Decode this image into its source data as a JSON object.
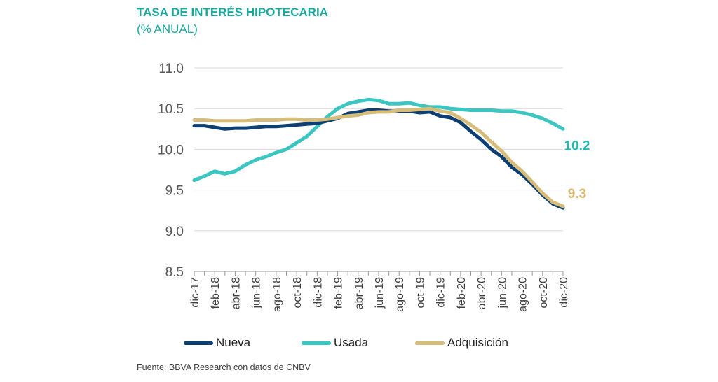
{
  "header": {
    "title": "TASA DE INTERÉS HIPOTECARIA",
    "subtitle": "(% ANUAL)"
  },
  "footer": {
    "source": "Fuente: BBVA Research con datos de CNBV"
  },
  "chart_data": {
    "type": "line",
    "title": "TASA DE INTERÉS HIPOTECARIA",
    "subtitle": "(% ANUAL)",
    "xlabel": "",
    "ylabel": "",
    "ylim": [
      8.5,
      11.0
    ],
    "yticks": [
      "11.0",
      "10.5",
      "10.0",
      "9.5",
      "9.0",
      "8.5"
    ],
    "grid": true,
    "legend_position": "bottom",
    "x": [
      "dic-17",
      "ene-18",
      "feb-18",
      "mar-18",
      "abr-18",
      "may-18",
      "jun-18",
      "jul-18",
      "ago-18",
      "sep-18",
      "oct-18",
      "nov-18",
      "dic-18",
      "ene-19",
      "feb-19",
      "mar-19",
      "abr-19",
      "may-19",
      "jun-19",
      "jul-19",
      "ago-19",
      "sep-19",
      "oct-19",
      "nov-19",
      "dic-19",
      "ene-20",
      "feb-20",
      "mar-20",
      "abr-20",
      "may-20",
      "jun-20",
      "jul-20",
      "ago-20",
      "sep-20",
      "oct-20",
      "nov-20",
      "dic-20"
    ],
    "xtick_labels": [
      "dic-17",
      "feb-18",
      "abr-18",
      "jun-18",
      "ago-18",
      "oct-18",
      "dic-18",
      "feb-19",
      "abr-19",
      "jun-19",
      "ago-19",
      "oct-19",
      "dic-19",
      "feb-20",
      "abr-20",
      "jun-20",
      "ago-20",
      "oct-20",
      "dic-20"
    ],
    "series": [
      {
        "name": "Nueva",
        "color": "#0d3f73",
        "values": [
          10.29,
          10.29,
          10.27,
          10.25,
          10.26,
          10.26,
          10.27,
          10.28,
          10.28,
          10.29,
          10.3,
          10.31,
          10.32,
          10.35,
          10.38,
          10.44,
          10.46,
          10.48,
          10.48,
          10.47,
          10.47,
          10.47,
          10.45,
          10.46,
          10.41,
          10.39,
          10.33,
          10.22,
          10.12,
          10.0,
          9.91,
          9.78,
          9.69,
          9.57,
          9.44,
          9.33,
          9.28
        ]
      },
      {
        "name": "Usada",
        "color": "#3cc6c2",
        "values": [
          9.62,
          9.67,
          9.73,
          9.7,
          9.73,
          9.81,
          9.87,
          9.91,
          9.96,
          10.0,
          10.08,
          10.16,
          10.28,
          10.4,
          10.5,
          10.56,
          10.59,
          10.61,
          10.6,
          10.56,
          10.56,
          10.57,
          10.54,
          10.52,
          10.52,
          10.5,
          10.49,
          10.48,
          10.48,
          10.48,
          10.47,
          10.47,
          10.45,
          10.42,
          10.38,
          10.32,
          10.25
        ]
      },
      {
        "name": "Adquisición",
        "color": "#d7bd7a",
        "values": [
          10.36,
          10.36,
          10.35,
          10.35,
          10.35,
          10.35,
          10.36,
          10.36,
          10.36,
          10.37,
          10.37,
          10.36,
          10.36,
          10.37,
          10.39,
          10.41,
          10.42,
          10.45,
          10.46,
          10.46,
          10.48,
          10.48,
          10.49,
          10.5,
          10.47,
          10.45,
          10.38,
          10.3,
          10.21,
          10.09,
          9.98,
          9.84,
          9.73,
          9.6,
          9.46,
          9.35,
          9.3
        ]
      }
    ],
    "end_labels": [
      {
        "series": "Usada",
        "text": "10.2",
        "color": "#1fb7b0"
      },
      {
        "series": "Adquisición",
        "text": "9.3",
        "color": "#d7b870"
      }
    ]
  }
}
